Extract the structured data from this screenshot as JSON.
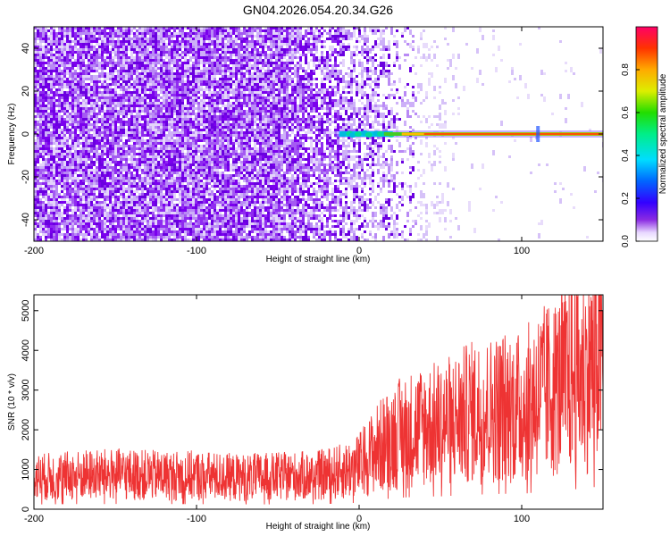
{
  "title": "GN04.2026.054.20.34.G26",
  "chart_data": [
    {
      "type": "heatmap",
      "xlabel": "Height of straight line (km)",
      "ylabel": "Frequency (Hz)",
      "xlim": [
        -200,
        150
      ],
      "ylim": [
        -50,
        50
      ],
      "xticks": [
        -200,
        -100,
        0,
        100
      ],
      "yticks": [
        -40,
        -20,
        0,
        20,
        40
      ],
      "colorbar": {
        "label": "Normalized spectral amplitude",
        "range": [
          0,
          1
        ],
        "ticks": [
          0.0,
          0.2,
          0.4,
          0.6,
          0.8
        ]
      },
      "features": {
        "noise_region_x": [
          -200,
          35
        ],
        "carrier_line_frequency": 0,
        "carrier_start_x": -15,
        "carrier_end_x": 150
      }
    },
    {
      "type": "line",
      "xlabel": "Height of straight line (km)",
      "ylabel": "SNR (10 * v/v)",
      "xlim": [
        -200,
        150
      ],
      "ylim": [
        0,
        5400
      ],
      "xticks": [
        -200,
        -100,
        0,
        100
      ],
      "yticks": [
        0,
        1000,
        2000,
        3000,
        4000,
        5000
      ],
      "color": "#ee3333",
      "series": [
        {
          "x": [
            -200,
            -175,
            -150,
            -125,
            -100,
            -75,
            -50,
            -25,
            -10,
            0,
            10,
            20,
            30,
            40,
            50,
            60,
            70,
            80,
            90,
            100,
            110,
            120,
            130,
            140,
            150
          ],
          "y": [
            800,
            850,
            880,
            850,
            850,
            800,
            820,
            850,
            950,
            1100,
            1500,
            1800,
            2000,
            2100,
            2150,
            2300,
            2450,
            2500,
            2600,
            2550,
            2900,
            3050,
            3300,
            3500,
            3950
          ]
        }
      ]
    }
  ]
}
